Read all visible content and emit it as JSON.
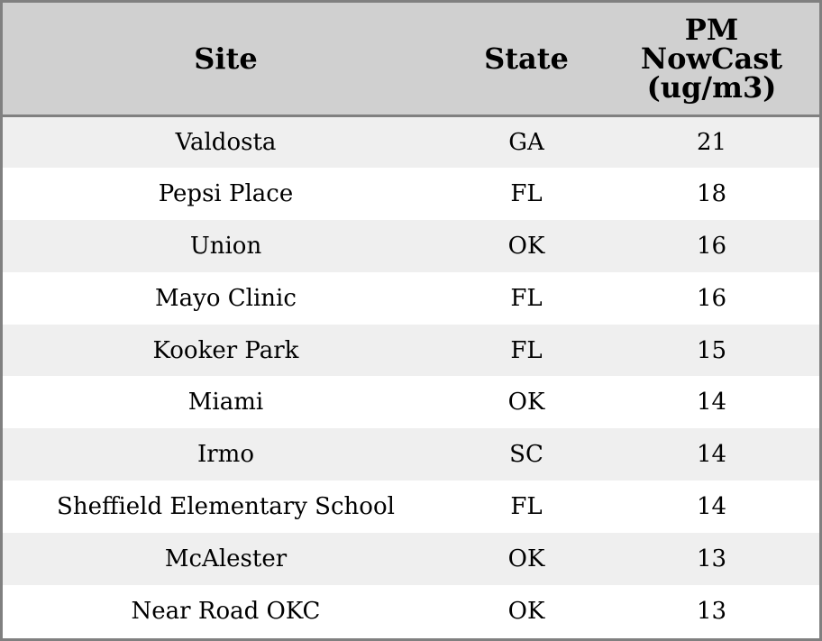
{
  "colors": {
    "header_bg": "#d0d0d0",
    "row_shaded": "#efefef",
    "row_plain": "#ffffff",
    "border": "#808080"
  },
  "chart_data": {
    "type": "table",
    "columns": [
      "Site",
      "State",
      "PM NowCast (ug/m3)"
    ],
    "header_lines": [
      [
        "Site"
      ],
      [
        "State"
      ],
      [
        "PM",
        "NowCast",
        "(ug/m3)"
      ]
    ],
    "rows": [
      [
        "Valdosta",
        "GA",
        "21"
      ],
      [
        "Pepsi Place",
        "FL",
        "18"
      ],
      [
        "Union",
        "OK",
        "16"
      ],
      [
        "Mayo Clinic",
        "FL",
        "16"
      ],
      [
        "Kooker Park",
        "FL",
        "15"
      ],
      [
        "Miami",
        "OK",
        "14"
      ],
      [
        "Irmo",
        "SC",
        "14"
      ],
      [
        "Sheffield Elementary School",
        "FL",
        "14"
      ],
      [
        "McAlester",
        "OK",
        "13"
      ],
      [
        "Near Road OKC",
        "OK",
        "13"
      ]
    ]
  }
}
